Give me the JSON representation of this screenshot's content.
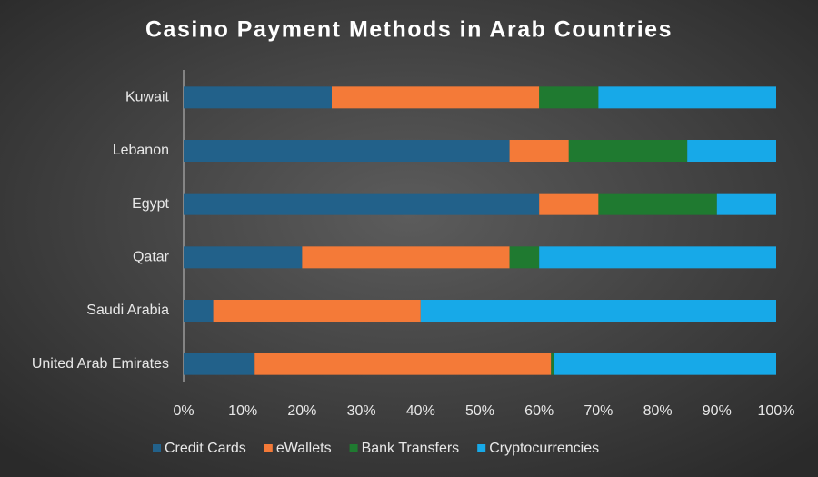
{
  "chart_data": {
    "type": "stacked-bar-horizontal",
    "title": "Casino Payment Methods in Arab Countries",
    "categories": [
      "Kuwait",
      "Lebanon",
      "Egypt",
      "Qatar",
      "Saudi Arabia",
      "United Arab Emirates"
    ],
    "series": [
      {
        "name": "Credit Cards",
        "color": "#22618a",
        "values": [
          25,
          55,
          60,
          20,
          5,
          12
        ]
      },
      {
        "name": "eWallets",
        "color": "#f47a38",
        "values": [
          35,
          10,
          10,
          35,
          35,
          50
        ]
      },
      {
        "name": "Bank Transfers",
        "color": "#1f7a30",
        "values": [
          10,
          20,
          20,
          5,
          0,
          0.5
        ]
      },
      {
        "name": "Cryptocurrencies",
        "color": "#17a9e8",
        "values": [
          30,
          15,
          10,
          40,
          60,
          37.5
        ]
      }
    ],
    "xlim": [
      0,
      100
    ],
    "xticks": [
      {
        "value": 0,
        "label": "0%"
      },
      {
        "value": 10,
        "label": "10%"
      },
      {
        "value": 20,
        "label": "20%"
      },
      {
        "value": 30,
        "label": "30%"
      },
      {
        "value": 40,
        "label": "40%"
      },
      {
        "value": 50,
        "label": "50%"
      },
      {
        "value": 60,
        "label": "60%"
      },
      {
        "value": 70,
        "label": "70%"
      },
      {
        "value": 80,
        "label": "80%"
      },
      {
        "value": 90,
        "label": "90%"
      },
      {
        "value": 100,
        "label": "100%"
      }
    ],
    "legend": "bottom"
  }
}
